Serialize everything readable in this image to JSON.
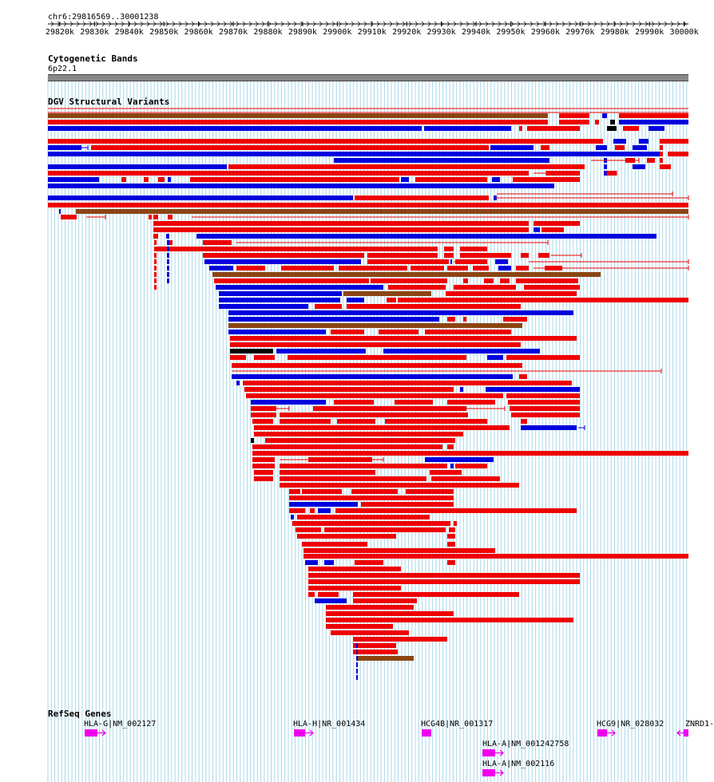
{
  "locus": "chr6:29816569..30001238",
  "ruler": {
    "start": 29816569,
    "end": 30001238,
    "tick_labels": [
      "29820k",
      "29830k",
      "29840k",
      "29850k",
      "29860k",
      "29870k",
      "29880k",
      "29890k",
      "29900k",
      "29910k",
      "29920k",
      "29930k",
      "29940k",
      "29950k",
      "29960k",
      "29970k",
      "29980k",
      "29990k",
      "30000k"
    ]
  },
  "tracks": {
    "cytoband": {
      "title": "Cytogenetic Bands",
      "band": "6p22.1"
    },
    "dgv": {
      "title": "DGV Structural Variants"
    },
    "refseq": {
      "title": "RefSeq Genes"
    }
  },
  "colors": {
    "gain": "#ee0000",
    "loss": "#0000dd",
    "inversion": "#8b4513",
    "other": "#000000",
    "gene": "#ee00ee",
    "grid": "#a8d8e8"
  },
  "genes": [
    {
      "label": "HLA-G|NM_002127"
    },
    {
      "label": "HLA-H|NR_001434"
    },
    {
      "label": "HCG4B|NR_001317"
    },
    {
      "label": "HCG9|NR_028032"
    },
    {
      "label": "ZNRD1-"
    },
    {
      "label": "HLA-A|NM_001242758"
    },
    {
      "label": "HLA-A|NM_002116"
    }
  ]
}
